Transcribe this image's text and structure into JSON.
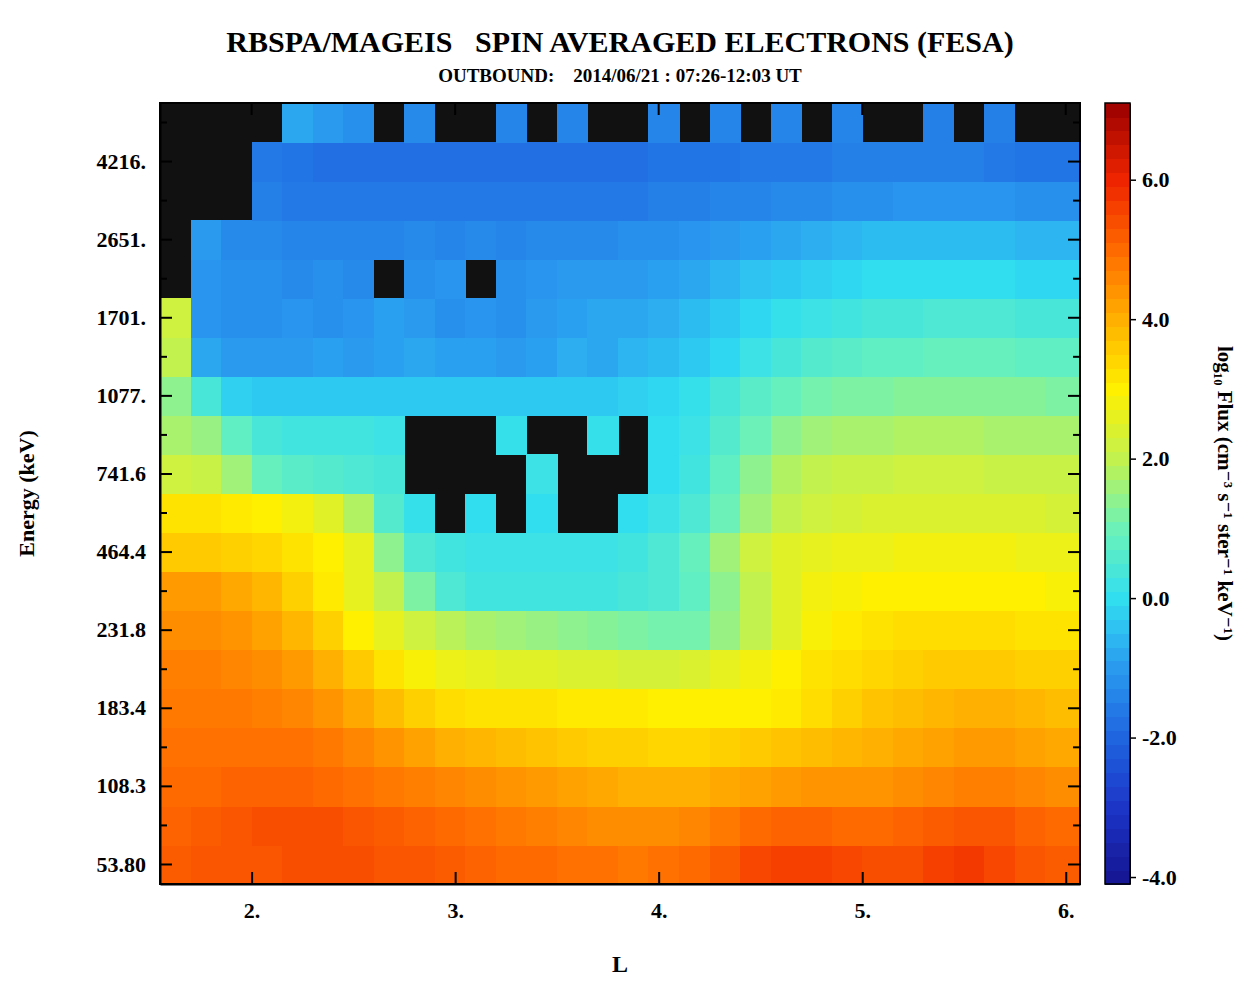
{
  "chart_data": {
    "type": "heatmap",
    "title": "RBSPA/MAGEIS   SPIN AVERAGED ELECTRONS (FESA)",
    "subtitle": "OUTBOUND:    2014/06/21 : 07:26-12:03 UT",
    "x_label": "L",
    "y_label": "Energy (keV)",
    "xlim": [
      1.55,
      6.07
    ],
    "xticks": [
      {
        "value": 2,
        "label": "2."
      },
      {
        "value": 3,
        "label": "3."
      },
      {
        "value": 4,
        "label": "4."
      },
      {
        "value": 5,
        "label": "5."
      },
      {
        "value": 6,
        "label": "6."
      }
    ],
    "x_edges": [
      1.55,
      1.7,
      1.85,
      2.0,
      2.15,
      2.3,
      2.45,
      2.6,
      2.75,
      2.9,
      3.05,
      3.2,
      3.35,
      3.5,
      3.65,
      3.8,
      3.95,
      4.1,
      4.25,
      4.4,
      4.55,
      4.7,
      4.85,
      5.0,
      5.15,
      5.3,
      5.45,
      5.6,
      5.75,
      5.9,
      6.07
    ],
    "y_categories": [
      "53.80",
      null,
      "108.3",
      null,
      "183.4",
      null,
      "231.8",
      null,
      "464.4",
      null,
      "741.6",
      null,
      "1077.",
      null,
      "1701.",
      null,
      "2651.",
      null,
      "4216.",
      null
    ],
    "z": [
      [
        5.2,
        5.3,
        5.3,
        5.3,
        5.4,
        5.4,
        5.4,
        5.3,
        5.3,
        5.2,
        5.1,
        5.0,
        5.0,
        4.9,
        4.9,
        4.8,
        4.9,
        5.0,
        5.2,
        5.5,
        5.6,
        5.6,
        5.5,
        5.4,
        5.4,
        5.6,
        5.7,
        5.5,
        5.3,
        5.2
      ],
      [
        5.1,
        5.2,
        5.3,
        5.4,
        5.4,
        5.4,
        5.3,
        5.2,
        5.1,
        5.0,
        4.9,
        4.8,
        4.7,
        4.6,
        4.5,
        4.5,
        4.5,
        4.6,
        4.8,
        5.0,
        5.1,
        5.1,
        5.0,
        5.0,
        5.1,
        5.2,
        5.3,
        5.3,
        5.1,
        5.0
      ],
      [
        5.0,
        5.0,
        5.1,
        5.1,
        5.1,
        5.0,
        4.9,
        4.8,
        4.7,
        4.6,
        4.5,
        4.4,
        4.3,
        4.2,
        4.1,
        4.0,
        4.0,
        4.0,
        4.1,
        4.2,
        4.3,
        4.4,
        4.4,
        4.4,
        4.5,
        4.6,
        4.7,
        4.7,
        4.6,
        4.5
      ],
      [
        4.9,
        4.9,
        4.9,
        4.9,
        4.9,
        4.8,
        4.6,
        4.4,
        4.2,
        4.0,
        3.9,
        3.8,
        3.7,
        3.6,
        3.5,
        3.5,
        3.4,
        3.4,
        3.5,
        3.6,
        3.7,
        3.8,
        3.9,
        4.0,
        4.1,
        4.2,
        4.3,
        4.3,
        4.2,
        4.1
      ],
      [
        4.8,
        4.8,
        4.8,
        4.7,
        4.6,
        4.4,
        4.1,
        3.8,
        3.5,
        3.3,
        3.2,
        3.2,
        3.2,
        3.1,
        3.1,
        3.1,
        3.0,
        3.0,
        3.0,
        3.0,
        3.1,
        3.3,
        3.5,
        3.7,
        3.8,
        3.9,
        4.0,
        4.0,
        3.9,
        3.8
      ],
      [
        4.7,
        4.7,
        4.6,
        4.5,
        4.3,
        4.0,
        3.6,
        3.2,
        2.9,
        2.7,
        2.6,
        2.5,
        2.5,
        2.4,
        2.4,
        2.3,
        2.3,
        2.4,
        2.6,
        2.8,
        3.0,
        3.2,
        3.3,
        3.4,
        3.5,
        3.6,
        3.6,
        3.6,
        3.5,
        3.5
      ],
      [
        4.5,
        4.5,
        4.4,
        4.2,
        3.9,
        3.5,
        3.0,
        2.6,
        2.2,
        1.9,
        1.7,
        1.6,
        1.5,
        1.4,
        1.3,
        1.2,
        1.1,
        1.1,
        1.5,
        2.0,
        2.5,
        2.9,
        3.1,
        3.2,
        3.3,
        3.3,
        3.3,
        3.3,
        3.2,
        3.2
      ],
      [
        4.3,
        4.3,
        4.1,
        3.9,
        3.5,
        3.1,
        2.6,
        2.0,
        1.2,
        0.5,
        0.3,
        0.3,
        0.3,
        0.3,
        0.3,
        0.4,
        0.5,
        0.8,
        1.4,
        2.0,
        2.5,
        2.8,
        2.9,
        3.0,
        3.0,
        3.0,
        3.0,
        3.0,
        3.0,
        2.9
      ],
      [
        3.6,
        3.6,
        3.5,
        3.4,
        3.2,
        3.0,
        2.6,
        1.4,
        0.5,
        0.3,
        0.2,
        0.2,
        0.2,
        0.2,
        0.2,
        0.3,
        0.5,
        0.9,
        1.6,
        2.2,
        2.5,
        2.6,
        2.7,
        2.7,
        2.8,
        2.8,
        2.8,
        2.8,
        2.7,
        2.7
      ],
      [
        3.2,
        3.2,
        3.1,
        3.0,
        2.8,
        2.5,
        1.8,
        0.6,
        0.1,
        null,
        0.0,
        null,
        0.0,
        null,
        null,
        0.0,
        0.2,
        0.5,
        1.0,
        1.6,
        2.0,
        2.2,
        2.3,
        2.4,
        2.4,
        2.4,
        2.4,
        2.4,
        2.4,
        2.3
      ],
      [
        2.2,
        2.1,
        1.6,
        0.9,
        0.7,
        0.6,
        0.5,
        0.4,
        null,
        null,
        null,
        null,
        0.2,
        null,
        null,
        null,
        0.0,
        0.3,
        0.8,
        1.4,
        1.8,
        2.0,
        2.1,
        2.1,
        2.2,
        2.2,
        2.2,
        2.1,
        2.1,
        2.1
      ],
      [
        1.7,
        1.5,
        0.8,
        0.4,
        0.3,
        0.3,
        0.3,
        0.2,
        null,
        null,
        null,
        0.1,
        null,
        null,
        0.1,
        null,
        0.0,
        0.2,
        0.6,
        1.0,
        1.4,
        1.6,
        1.7,
        1.7,
        1.8,
        1.8,
        1.8,
        1.7,
        1.7,
        1.7
      ],
      [
        1.4,
        0.4,
        -0.2,
        -0.3,
        -0.3,
        -0.3,
        -0.3,
        -0.3,
        -0.3,
        -0.3,
        -0.3,
        -0.3,
        -0.3,
        -0.3,
        -0.3,
        -0.2,
        -0.1,
        0.1,
        0.4,
        0.7,
        0.9,
        1.1,
        1.2,
        1.2,
        1.3,
        1.3,
        1.3,
        1.3,
        1.3,
        1.2
      ],
      [
        2.0,
        -0.8,
        -1.0,
        -1.0,
        -1.0,
        -0.9,
        -1.0,
        -0.9,
        -0.8,
        -0.9,
        -0.9,
        -1.0,
        -0.9,
        -0.7,
        -0.8,
        -0.6,
        -0.5,
        -0.3,
        -0.1,
        0.2,
        0.4,
        0.6,
        0.7,
        0.8,
        0.8,
        0.9,
        0.9,
        0.9,
        0.8,
        0.8
      ],
      [
        2.2,
        -1.1,
        -1.2,
        -1.2,
        -1.1,
        -1.2,
        -1.1,
        -0.9,
        -1.0,
        -1.2,
        -1.1,
        -1.2,
        -1.0,
        -0.9,
        -0.8,
        -0.8,
        -0.7,
        -0.5,
        -0.3,
        -0.1,
        0.1,
        0.2,
        0.3,
        0.4,
        0.4,
        0.5,
        0.5,
        0.5,
        0.4,
        0.4
      ],
      [
        null,
        -1.1,
        -1.2,
        -1.2,
        -1.3,
        -1.2,
        -1.3,
        null,
        -1.2,
        -1.1,
        null,
        -1.2,
        -1.1,
        -1.0,
        -1.0,
        -1.0,
        -0.9,
        -0.8,
        -0.6,
        -0.4,
        -0.3,
        -0.2,
        -0.1,
        0.0,
        0.0,
        0.0,
        0.0,
        0.0,
        -0.1,
        -0.1
      ],
      [
        null,
        -1.0,
        -1.3,
        -1.3,
        -1.4,
        -1.4,
        -1.4,
        -1.4,
        -1.3,
        -1.4,
        -1.3,
        -1.4,
        -1.3,
        -1.3,
        -1.3,
        -1.2,
        -1.2,
        -1.1,
        -1.0,
        -0.9,
        -0.8,
        -0.7,
        -0.6,
        -0.5,
        -0.5,
        -0.5,
        -0.5,
        -0.5,
        -0.6,
        -0.6
      ],
      [
        null,
        null,
        null,
        -1.5,
        -1.6,
        -1.6,
        -1.6,
        -1.6,
        -1.6,
        -1.6,
        -1.6,
        -1.6,
        -1.6,
        -1.6,
        -1.6,
        -1.6,
        -1.5,
        -1.5,
        -1.4,
        -1.4,
        -1.3,
        -1.3,
        -1.2,
        -1.2,
        -1.1,
        -1.1,
        -1.1,
        -1.1,
        -1.2,
        -1.2
      ],
      [
        null,
        null,
        null,
        -1.6,
        -1.7,
        -1.8,
        -1.8,
        -1.8,
        -1.8,
        -1.8,
        -1.8,
        -1.8,
        -1.8,
        -1.8,
        -1.8,
        -1.8,
        -1.7,
        -1.7,
        -1.7,
        -1.6,
        -1.6,
        -1.6,
        -1.5,
        -1.5,
        -1.5,
        -1.5,
        -1.5,
        -1.6,
        -1.7,
        -1.7
      ],
      [
        null,
        null,
        null,
        null,
        -0.8,
        -1.0,
        -1.2,
        null,
        -1.3,
        null,
        null,
        -1.4,
        null,
        -1.4,
        null,
        null,
        -1.4,
        null,
        -1.4,
        null,
        -1.4,
        null,
        -1.4,
        null,
        null,
        -1.5,
        null,
        -1.5,
        null,
        null
      ]
    ],
    "colorbar": {
      "label": "log₁₀ Flux (cm⁻³ s⁻¹ ster⁻¹ keV⁻¹)",
      "clim": [
        -4.1,
        7.1
      ],
      "cticks": [
        {
          "value": -4,
          "label": "-4.0"
        },
        {
          "value": -2,
          "label": "-2.0"
        },
        {
          "value": 0,
          "label": "0.0"
        },
        {
          "value": 2,
          "label": "2.0"
        },
        {
          "value": 4,
          "label": "4.0"
        },
        {
          "value": 6,
          "label": "6.0"
        }
      ]
    }
  }
}
